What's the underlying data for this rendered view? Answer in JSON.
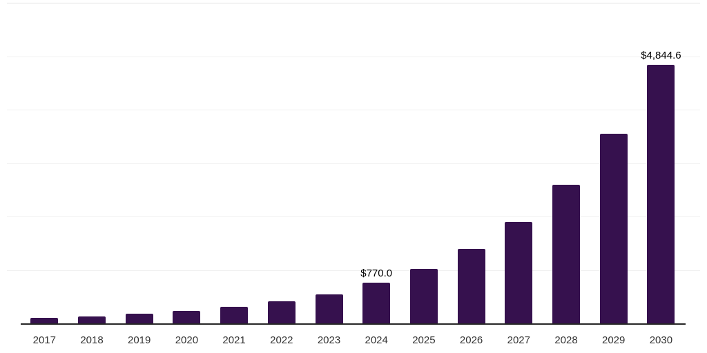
{
  "chart_data": {
    "type": "bar",
    "title": "",
    "xlabel": "",
    "ylabel": "",
    "categories": [
      "2017",
      "2018",
      "2019",
      "2020",
      "2021",
      "2022",
      "2023",
      "2024",
      "2025",
      "2026",
      "2027",
      "2028",
      "2029",
      "2030"
    ],
    "values": [
      110,
      140,
      190,
      235,
      315,
      415,
      545,
      770.0,
      1030,
      1400,
      1900,
      2600,
      3550,
      4844.6
    ],
    "data_labels": {
      "2024": "$770.0",
      "2030": "$4,844.6"
    },
    "bar_color": "#36114E",
    "axis_color": "#262626",
    "gridline_color": "#f0f0f0",
    "label_color": "#000000",
    "tick_label_color": "#333333",
    "ylim": [
      0,
      6000
    ],
    "gridline_step": 1000,
    "grid": true,
    "legend": false,
    "background": "#ffffff"
  }
}
